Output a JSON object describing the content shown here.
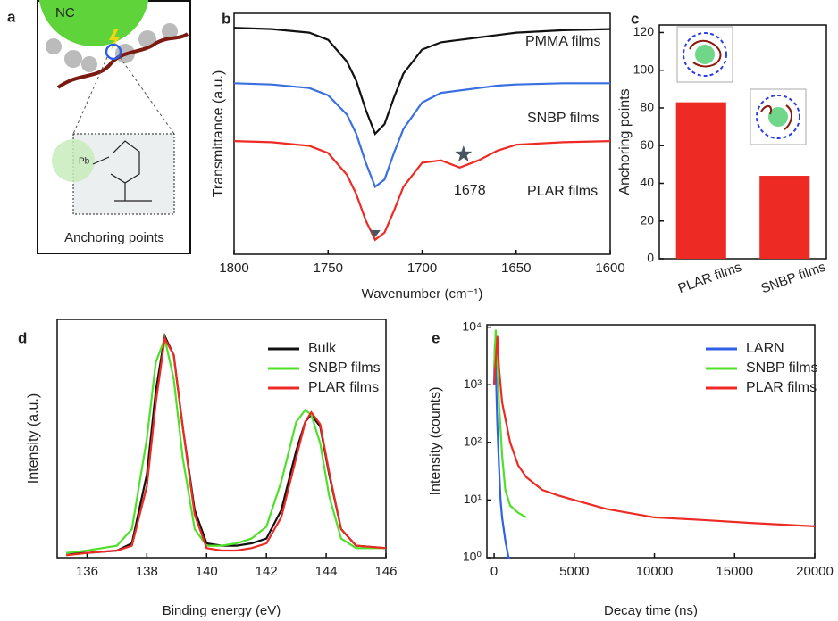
{
  "diagram": {
    "label": "a",
    "nc": "NC",
    "pb": "Pb",
    "caption": "Anchoring points"
  },
  "chart_data": [
    {
      "type": "line",
      "panel_label": "b",
      "xlabel": "Wavenumber (cm⁻¹)",
      "ylabel": "Transmittance (a.u.)",
      "xlim": [
        1800,
        1600
      ],
      "xticks": [
        1800,
        1750,
        1700,
        1650,
        1600
      ],
      "ylim": [
        0,
        10
      ],
      "annotation": "1678",
      "x": [
        1800,
        1780,
        1760,
        1750,
        1740,
        1735,
        1730,
        1725,
        1720,
        1715,
        1710,
        1700,
        1690,
        1680,
        1670,
        1660,
        1650,
        1625,
        1600
      ],
      "series": [
        {
          "name": "PMMA films",
          "color": "#111111",
          "values": [
            9.4,
            9.35,
            9.2,
            8.9,
            8.0,
            7.2,
            6.0,
            5.0,
            5.4,
            6.5,
            7.5,
            8.5,
            8.8,
            8.9,
            9.0,
            9.1,
            9.2,
            9.3,
            9.35
          ]
        },
        {
          "name": "SNBP films",
          "color": "#3a6fe0",
          "values": [
            7.1,
            7.05,
            6.9,
            6.6,
            5.8,
            5.0,
            3.8,
            2.8,
            3.1,
            4.2,
            5.2,
            6.3,
            6.7,
            6.8,
            6.9,
            7.0,
            7.05,
            7.1,
            7.1
          ]
        },
        {
          "name": "PLAR films",
          "color": "#ee2a24",
          "values": [
            4.7,
            4.65,
            4.5,
            4.2,
            3.3,
            2.5,
            1.4,
            0.6,
            0.9,
            1.8,
            2.8,
            3.8,
            3.9,
            3.6,
            3.9,
            4.3,
            4.55,
            4.65,
            4.7
          ]
        }
      ]
    },
    {
      "type": "bar",
      "panel_label": "c",
      "ylabel": "Anchoring points",
      "categories": [
        "PLAR films",
        "SNBP films"
      ],
      "values": [
        83,
        44
      ],
      "color": "#ee2a24",
      "ylim": [
        0,
        124
      ],
      "yticks": [
        0,
        20,
        40,
        60,
        80,
        100,
        120
      ]
    },
    {
      "type": "line",
      "panel_label": "d",
      "xlabel": "Binding energy (eV)",
      "ylabel": "Intensity (a.u.)",
      "xlim": [
        135,
        146
      ],
      "xticks": [
        136,
        138,
        140,
        142,
        144,
        146
      ],
      "ylim": [
        0,
        1
      ],
      "x": [
        135.3,
        136,
        137,
        137.5,
        138,
        138.3,
        138.6,
        138.9,
        139.2,
        139.6,
        140,
        140.5,
        141,
        141.5,
        142,
        142.5,
        143,
        143.3,
        143.5,
        143.8,
        144.1,
        144.5,
        145,
        146
      ],
      "series": [
        {
          "name": "Bulk",
          "color": "#111111",
          "values": [
            0.02,
            0.02,
            0.03,
            0.06,
            0.35,
            0.7,
            0.93,
            0.85,
            0.55,
            0.2,
            0.06,
            0.05,
            0.05,
            0.06,
            0.08,
            0.2,
            0.45,
            0.57,
            0.6,
            0.55,
            0.35,
            0.12,
            0.05,
            0.04
          ]
        },
        {
          "name": "SNBP films",
          "color": "#4fe02a",
          "values": [
            0.02,
            0.03,
            0.05,
            0.12,
            0.5,
            0.82,
            0.92,
            0.75,
            0.42,
            0.12,
            0.05,
            0.05,
            0.06,
            0.08,
            0.13,
            0.32,
            0.57,
            0.62,
            0.6,
            0.48,
            0.26,
            0.08,
            0.04,
            0.04
          ]
        },
        {
          "name": "PLAR films",
          "color": "#ee2a24",
          "values": [
            0.01,
            0.02,
            0.03,
            0.05,
            0.3,
            0.65,
            0.92,
            0.85,
            0.55,
            0.18,
            0.04,
            0.03,
            0.03,
            0.04,
            0.06,
            0.17,
            0.42,
            0.57,
            0.61,
            0.56,
            0.36,
            0.12,
            0.05,
            0.04
          ]
        }
      ]
    },
    {
      "type": "line",
      "panel_label": "e",
      "xlabel": "Decay time (ns)",
      "ylabel": "Intensity (counts)",
      "log_y": true,
      "xlim": [
        -450,
        20000
      ],
      "xticks": [
        0,
        5000,
        10000,
        15000,
        20000
      ],
      "ylim": [
        1,
        11000
      ],
      "yticks": [
        {
          "value": 1,
          "label": "10⁰"
        },
        {
          "value": 10,
          "label": "10¹"
        },
        {
          "value": 100,
          "label": "10²"
        },
        {
          "value": 1000,
          "label": "10³"
        },
        {
          "value": 10000,
          "label": "10⁴"
        }
      ],
      "series": [
        {
          "name": "LARN",
          "color": "#2f5fe6",
          "x": [
            0,
            50,
            100,
            200,
            300,
            400,
            500,
            700,
            900,
            1000
          ],
          "values": [
            1000,
            5000,
            2000,
            200,
            40,
            10,
            5,
            2,
            1,
            1
          ]
        },
        {
          "name": "SNBP films",
          "color": "#4fe02a",
          "x": [
            0,
            100,
            200,
            300,
            500,
            700,
            1000,
            1500,
            2000
          ],
          "values": [
            2000,
            9000,
            3000,
            500,
            60,
            15,
            8,
            6,
            5
          ]
        },
        {
          "name": "PLAR films",
          "color": "#ee2a24",
          "x": [
            0,
            200,
            300,
            500,
            1000,
            1500,
            2000,
            3000,
            4000,
            5000,
            7000,
            10000,
            13000,
            16000,
            20000
          ],
          "values": [
            1000,
            7000,
            2000,
            500,
            100,
            40,
            25,
            15,
            12,
            10,
            7,
            5,
            4.5,
            4,
            3.5
          ]
        }
      ]
    }
  ]
}
